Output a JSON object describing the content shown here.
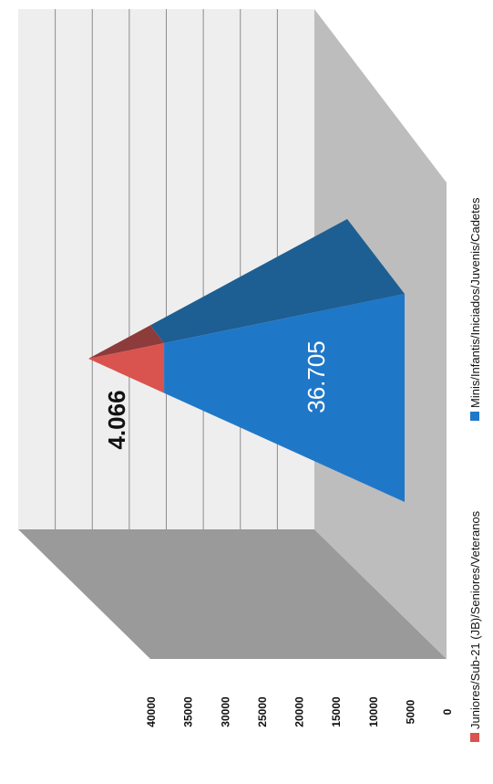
{
  "chart_data": {
    "type": "3d-pyramid-stacked",
    "orientation": "rotated-90",
    "title": "",
    "yaxis": {
      "min": 0,
      "max": 40000,
      "step": 5000,
      "ticks": [
        "40000",
        "35000",
        "30000",
        "25000",
        "20000",
        "15000",
        "10000",
        "5000",
        "0"
      ]
    },
    "series": [
      {
        "name": "Juniores/Sub-21 (JB)/Seniores/Veteranos",
        "value": 4066,
        "label": "4.066",
        "color": "#d9534f"
      },
      {
        "name": "Minis/Infantis/Iniciados/Juvenis/Cadetes",
        "value": 36705,
        "label": "36.705",
        "color": "#1f77c8"
      }
    ],
    "legend_position": "bottom",
    "colors": {
      "back_wall": "#eeeeee",
      "side_wall": "#9a9a9a",
      "floor": "#bdbdbd",
      "gridline": "#8c8c8c"
    }
  }
}
